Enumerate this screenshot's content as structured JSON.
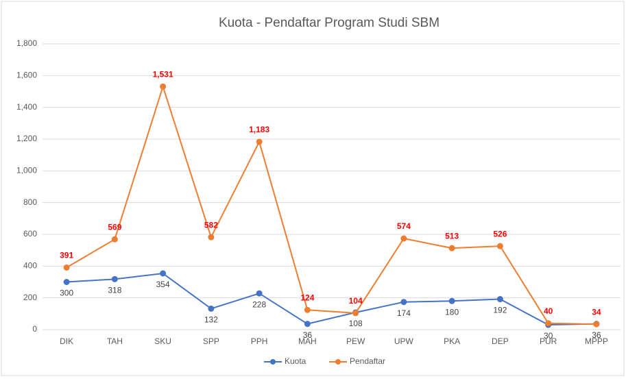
{
  "chart_data": {
    "type": "line",
    "title": "Kuota - Pendaftar Program Studi SBM",
    "categories": [
      "DIK",
      "TAH",
      "SKU",
      "SPP",
      "PPH",
      "MAH",
      "PEW",
      "UPW",
      "PKA",
      "DEP",
      "PUR",
      "MPPP"
    ],
    "series": [
      {
        "name": "Kuota",
        "color": "#4472c4",
        "label_color": "#404040",
        "values": [
          300,
          318,
          354,
          132,
          228,
          36,
          108,
          174,
          180,
          192,
          30,
          36
        ]
      },
      {
        "name": "Pendaftar",
        "color": "#ed7d31",
        "label_color": "#ff0000",
        "values": [
          391,
          569,
          1531,
          582,
          1183,
          124,
          104,
          574,
          513,
          526,
          40,
          34
        ],
        "value_labels": [
          "391",
          "569",
          "1,531",
          "582",
          "1,183",
          "124",
          "104",
          "574",
          "513",
          "526",
          "40",
          "34"
        ]
      }
    ],
    "ylim": [
      0,
      1800
    ],
    "yticks": [
      0,
      200,
      400,
      600,
      800,
      {
        "value": 1000,
        "label": "1,000"
      },
      {
        "value": 1200,
        "label": "1,200"
      },
      {
        "value": 1400,
        "label": "1,400"
      },
      {
        "value": 1600,
        "label": "1,600"
      },
      {
        "value": 1800,
        "label": "1,800"
      }
    ],
    "grid": true,
    "legend": "bottom"
  }
}
